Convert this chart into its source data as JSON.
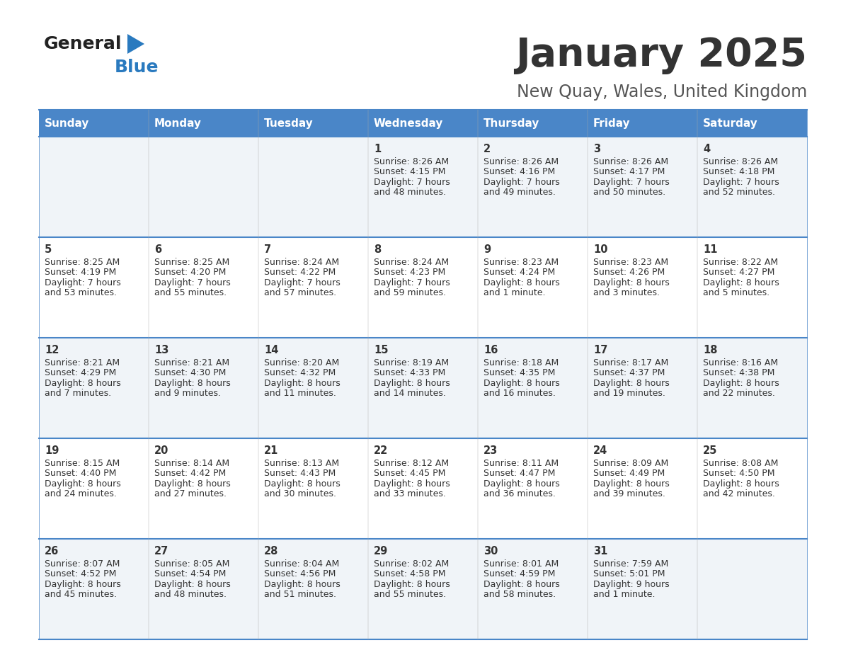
{
  "title": "January 2025",
  "subtitle": "New Quay, Wales, United Kingdom",
  "days_of_week": [
    "Sunday",
    "Monday",
    "Tuesday",
    "Wednesday",
    "Thursday",
    "Friday",
    "Saturday"
  ],
  "header_bg": "#4a86c8",
  "header_text": "#ffffff",
  "row_bg_odd": "#f0f4f8",
  "row_bg_even": "#ffffff",
  "cell_text": "#333333",
  "border_color": "#4a86c8",
  "separator_color": "#4a86c8",
  "title_color": "#333333",
  "subtitle_color": "#555555",
  "logo_general_color": "#222222",
  "logo_blue_color": "#2a7abf",
  "days": [
    {
      "date": 1,
      "col": 3,
      "row": 0,
      "sunrise": "8:26 AM",
      "sunset": "4:15 PM",
      "daylight_h": "7 hours",
      "daylight_m": "48 minutes."
    },
    {
      "date": 2,
      "col": 4,
      "row": 0,
      "sunrise": "8:26 AM",
      "sunset": "4:16 PM",
      "daylight_h": "7 hours",
      "daylight_m": "49 minutes."
    },
    {
      "date": 3,
      "col": 5,
      "row": 0,
      "sunrise": "8:26 AM",
      "sunset": "4:17 PM",
      "daylight_h": "7 hours",
      "daylight_m": "50 minutes."
    },
    {
      "date": 4,
      "col": 6,
      "row": 0,
      "sunrise": "8:26 AM",
      "sunset": "4:18 PM",
      "daylight_h": "7 hours",
      "daylight_m": "52 minutes."
    },
    {
      "date": 5,
      "col": 0,
      "row": 1,
      "sunrise": "8:25 AM",
      "sunset": "4:19 PM",
      "daylight_h": "7 hours",
      "daylight_m": "53 minutes."
    },
    {
      "date": 6,
      "col": 1,
      "row": 1,
      "sunrise": "8:25 AM",
      "sunset": "4:20 PM",
      "daylight_h": "7 hours",
      "daylight_m": "55 minutes."
    },
    {
      "date": 7,
      "col": 2,
      "row": 1,
      "sunrise": "8:24 AM",
      "sunset": "4:22 PM",
      "daylight_h": "7 hours",
      "daylight_m": "57 minutes."
    },
    {
      "date": 8,
      "col": 3,
      "row": 1,
      "sunrise": "8:24 AM",
      "sunset": "4:23 PM",
      "daylight_h": "7 hours",
      "daylight_m": "59 minutes."
    },
    {
      "date": 9,
      "col": 4,
      "row": 1,
      "sunrise": "8:23 AM",
      "sunset": "4:24 PM",
      "daylight_h": "8 hours",
      "daylight_m": "1 minute."
    },
    {
      "date": 10,
      "col": 5,
      "row": 1,
      "sunrise": "8:23 AM",
      "sunset": "4:26 PM",
      "daylight_h": "8 hours",
      "daylight_m": "3 minutes."
    },
    {
      "date": 11,
      "col": 6,
      "row": 1,
      "sunrise": "8:22 AM",
      "sunset": "4:27 PM",
      "daylight_h": "8 hours",
      "daylight_m": "5 minutes."
    },
    {
      "date": 12,
      "col": 0,
      "row": 2,
      "sunrise": "8:21 AM",
      "sunset": "4:29 PM",
      "daylight_h": "8 hours",
      "daylight_m": "7 minutes."
    },
    {
      "date": 13,
      "col": 1,
      "row": 2,
      "sunrise": "8:21 AM",
      "sunset": "4:30 PM",
      "daylight_h": "8 hours",
      "daylight_m": "9 minutes."
    },
    {
      "date": 14,
      "col": 2,
      "row": 2,
      "sunrise": "8:20 AM",
      "sunset": "4:32 PM",
      "daylight_h": "8 hours",
      "daylight_m": "11 minutes."
    },
    {
      "date": 15,
      "col": 3,
      "row": 2,
      "sunrise": "8:19 AM",
      "sunset": "4:33 PM",
      "daylight_h": "8 hours",
      "daylight_m": "14 minutes."
    },
    {
      "date": 16,
      "col": 4,
      "row": 2,
      "sunrise": "8:18 AM",
      "sunset": "4:35 PM",
      "daylight_h": "8 hours",
      "daylight_m": "16 minutes."
    },
    {
      "date": 17,
      "col": 5,
      "row": 2,
      "sunrise": "8:17 AM",
      "sunset": "4:37 PM",
      "daylight_h": "8 hours",
      "daylight_m": "19 minutes."
    },
    {
      "date": 18,
      "col": 6,
      "row": 2,
      "sunrise": "8:16 AM",
      "sunset": "4:38 PM",
      "daylight_h": "8 hours",
      "daylight_m": "22 minutes."
    },
    {
      "date": 19,
      "col": 0,
      "row": 3,
      "sunrise": "8:15 AM",
      "sunset": "4:40 PM",
      "daylight_h": "8 hours",
      "daylight_m": "24 minutes."
    },
    {
      "date": 20,
      "col": 1,
      "row": 3,
      "sunrise": "8:14 AM",
      "sunset": "4:42 PM",
      "daylight_h": "8 hours",
      "daylight_m": "27 minutes."
    },
    {
      "date": 21,
      "col": 2,
      "row": 3,
      "sunrise": "8:13 AM",
      "sunset": "4:43 PM",
      "daylight_h": "8 hours",
      "daylight_m": "30 minutes."
    },
    {
      "date": 22,
      "col": 3,
      "row": 3,
      "sunrise": "8:12 AM",
      "sunset": "4:45 PM",
      "daylight_h": "8 hours",
      "daylight_m": "33 minutes."
    },
    {
      "date": 23,
      "col": 4,
      "row": 3,
      "sunrise": "8:11 AM",
      "sunset": "4:47 PM",
      "daylight_h": "8 hours",
      "daylight_m": "36 minutes."
    },
    {
      "date": 24,
      "col": 5,
      "row": 3,
      "sunrise": "8:09 AM",
      "sunset": "4:49 PM",
      "daylight_h": "8 hours",
      "daylight_m": "39 minutes."
    },
    {
      "date": 25,
      "col": 6,
      "row": 3,
      "sunrise": "8:08 AM",
      "sunset": "4:50 PM",
      "daylight_h": "8 hours",
      "daylight_m": "42 minutes."
    },
    {
      "date": 26,
      "col": 0,
      "row": 4,
      "sunrise": "8:07 AM",
      "sunset": "4:52 PM",
      "daylight_h": "8 hours",
      "daylight_m": "45 minutes."
    },
    {
      "date": 27,
      "col": 1,
      "row": 4,
      "sunrise": "8:05 AM",
      "sunset": "4:54 PM",
      "daylight_h": "8 hours",
      "daylight_m": "48 minutes."
    },
    {
      "date": 28,
      "col": 2,
      "row": 4,
      "sunrise": "8:04 AM",
      "sunset": "4:56 PM",
      "daylight_h": "8 hours",
      "daylight_m": "51 minutes."
    },
    {
      "date": 29,
      "col": 3,
      "row": 4,
      "sunrise": "8:02 AM",
      "sunset": "4:58 PM",
      "daylight_h": "8 hours",
      "daylight_m": "55 minutes."
    },
    {
      "date": 30,
      "col": 4,
      "row": 4,
      "sunrise": "8:01 AM",
      "sunset": "4:59 PM",
      "daylight_h": "8 hours",
      "daylight_m": "58 minutes."
    },
    {
      "date": 31,
      "col": 5,
      "row": 4,
      "sunrise": "7:59 AM",
      "sunset": "5:01 PM",
      "daylight_h": "9 hours",
      "daylight_m": "1 minute."
    }
  ]
}
